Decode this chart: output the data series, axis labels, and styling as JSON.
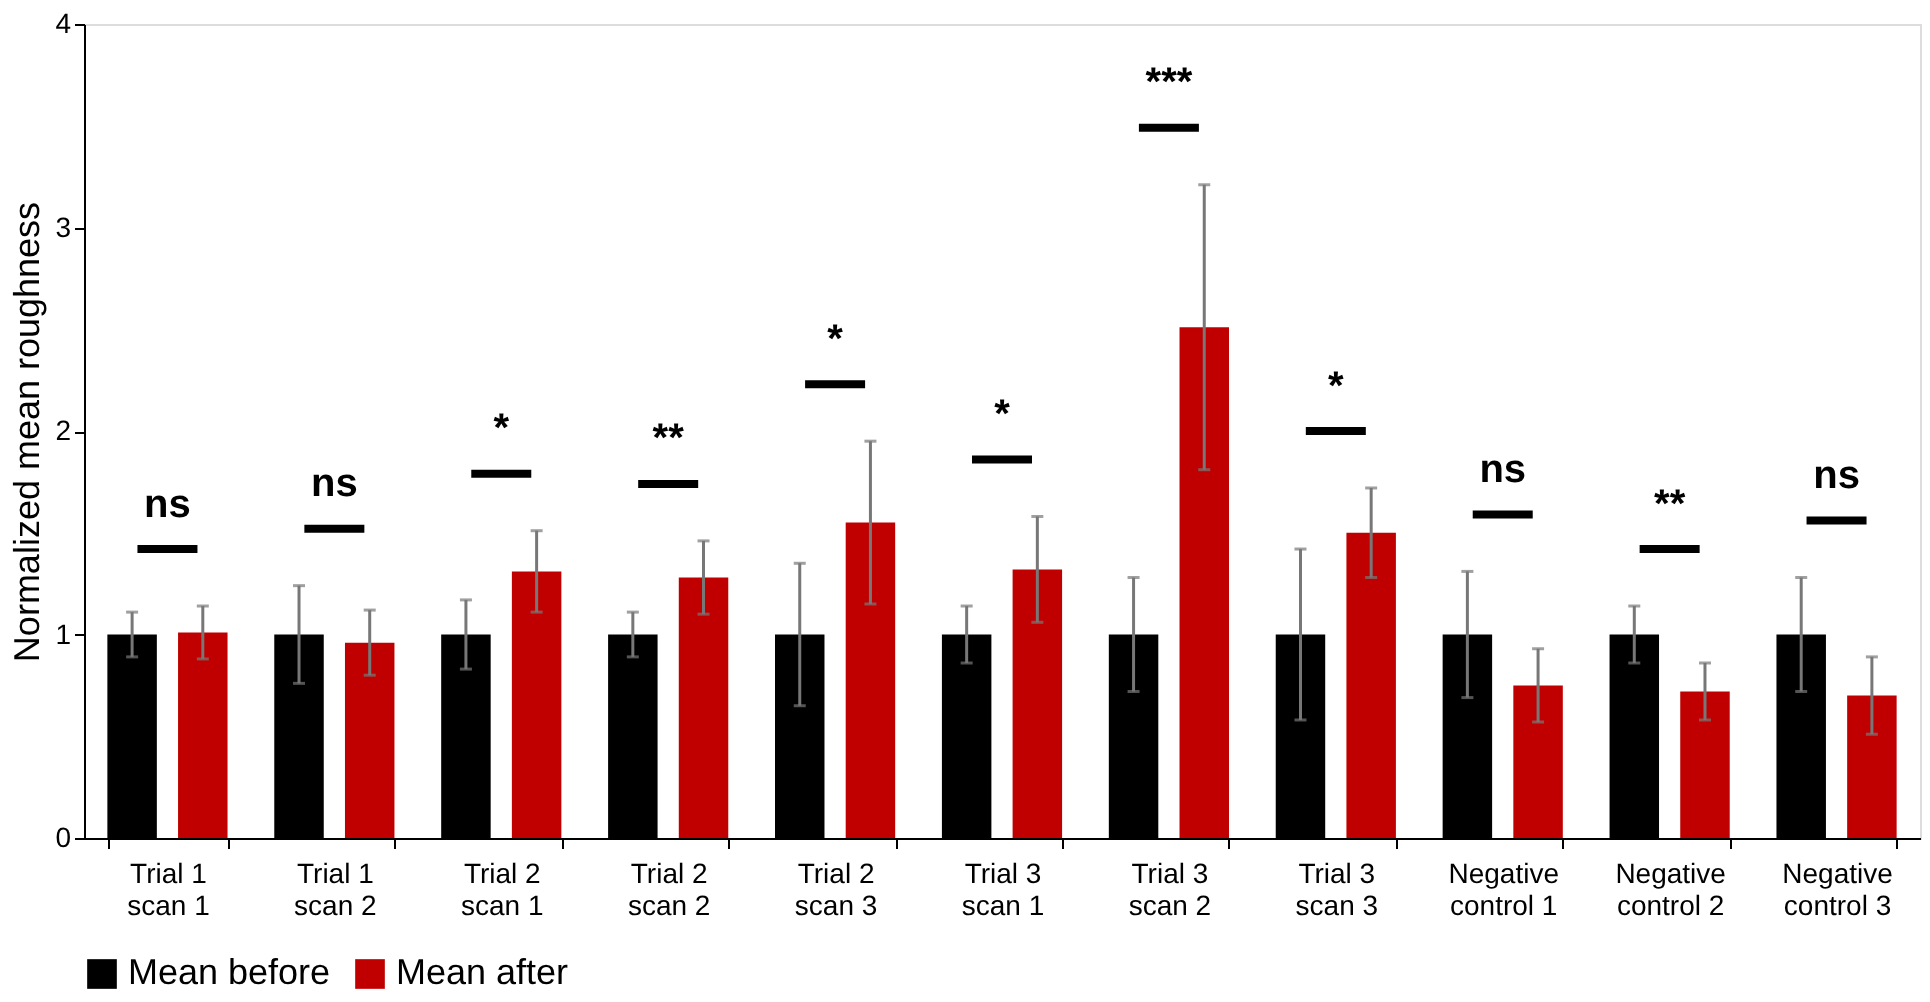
{
  "chart_data": {
    "type": "bar",
    "ylabel": "Normalized mean roughness",
    "categories": [
      "Trial 1 scan 1",
      "Trial 1 scan 2",
      "Trial 2 scan 1",
      "Trial 2 scan 2",
      "Trial 2 scan 3",
      "Trial 3 scan 1",
      "Trial 3 scan 2",
      "Trial 3 scan 3",
      "Negative control 1",
      "Negative control 2",
      "Negative control 3"
    ],
    "series": [
      {
        "name": "Mean before",
        "color": "#000000",
        "values": [
          1,
          1,
          1,
          1,
          1,
          1,
          1,
          1,
          1,
          1,
          1
        ],
        "errors": [
          0.11,
          0.24,
          0.17,
          0.11,
          0.35,
          0.14,
          0.28,
          0.42,
          0.31,
          0.14,
          0.28
        ]
      },
      {
        "name": "Mean after",
        "color": "#c00000",
        "values": [
          1.01,
          0.96,
          1.31,
          1.28,
          1.55,
          1.32,
          2.51,
          1.5,
          0.75,
          0.72,
          0.7
        ],
        "errors": [
          0.13,
          0.16,
          0.2,
          0.18,
          0.4,
          0.26,
          0.7,
          0.22,
          0.18,
          0.14,
          0.19
        ]
      }
    ],
    "annotations": [
      "ns",
      "ns",
      "*",
      "**",
      "*",
      "*",
      "***",
      "*",
      "ns",
      "**",
      "ns"
    ],
    "ylim": [
      0,
      4
    ],
    "yticks": [
      0,
      1,
      2,
      3,
      4
    ],
    "grid": false,
    "legend": "bottom"
  }
}
